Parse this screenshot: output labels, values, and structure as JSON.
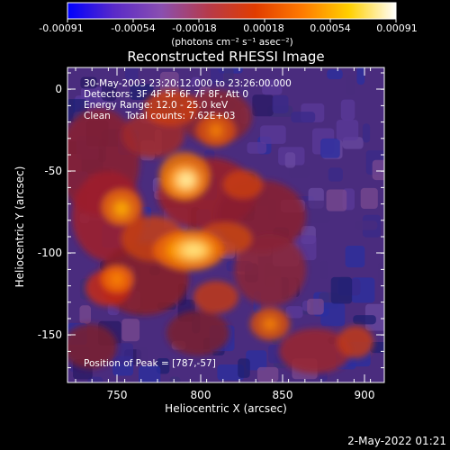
{
  "colorbar": {
    "ticks": [
      "-0.00091",
      "-0.00054",
      "-0.00018",
      "0.00018",
      "0.00054",
      "0.00091"
    ],
    "unit_label": "(photons cm⁻² s⁻¹ asec⁻²)",
    "colors": [
      "#0000ff",
      "#5a2ac8",
      "#8a4fb0",
      "#b63a4a",
      "#e13c00",
      "#ff7a00",
      "#ffd000",
      "#ffffff"
    ]
  },
  "image": {
    "title": "Reconstructed RHESSI Image",
    "info_lines": [
      "30-May-2003 23:20:12.000 to 23:26:00.000",
      "Detectors: 3F 4F 5F 6F 7F 8F, Att 0",
      "Energy Range: 12.0 - 25.0 keV",
      "Clean     Total counts: 7.62E+03"
    ],
    "peak_label": "Position of Peak = [787,-57]"
  },
  "axes": {
    "xlabel": "Heliocentric X (arcsec)",
    "ylabel": "Heliocentric Y (arcsec)",
    "xticks": [
      "750",
      "800",
      "850",
      "900"
    ],
    "yticks": [
      "0",
      "-50",
      "-100",
      "-150"
    ]
  },
  "footer": {
    "date": "2-May-2022 01:21"
  }
}
